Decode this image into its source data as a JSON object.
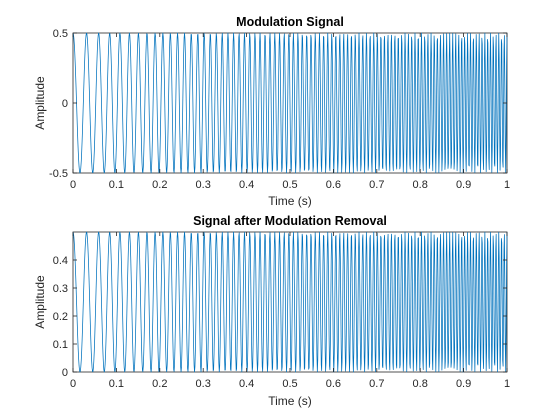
{
  "chart_data": [
    {
      "type": "line",
      "title": "Modulation Signal",
      "xlabel": "Time (s)",
      "ylabel": "Amplitude",
      "xlim": [
        0,
        1
      ],
      "ylim": [
        -0.5,
        0.5
      ],
      "xticks": [
        "0",
        "0.1",
        "0.2",
        "0.3",
        "0.4",
        "0.5",
        "0.6",
        "0.7",
        "0.8",
        "0.9",
        "1"
      ],
      "yticks": [
        "-0.5",
        "0",
        "0.5"
      ],
      "grid": false,
      "series": [
        {
          "signal": "chirp",
          "amplitude": 0.5,
          "offset": 0,
          "start_frequency_hz": 30,
          "end_frequency_hz": 160,
          "sample_rate_hz": 1000,
          "color": "#0072BD"
        }
      ]
    },
    {
      "type": "line",
      "title": "Signal after Modulation Removal",
      "xlabel": "Time (s)",
      "ylabel": "Amplitude",
      "xlim": [
        0,
        1
      ],
      "ylim": [
        0,
        0.5
      ],
      "xticks": [
        "0",
        "0.1",
        "0.2",
        "0.3",
        "0.4",
        "0.5",
        "0.6",
        "0.7",
        "0.8",
        "0.9",
        "1"
      ],
      "yticks": [
        "0",
        "0.1",
        "0.2",
        "0.3",
        "0.4"
      ],
      "grid": false,
      "series": [
        {
          "signal": "chirp",
          "amplitude": 0.25,
          "offset": 0.25,
          "start_frequency_hz": 30,
          "end_frequency_hz": 160,
          "sample_rate_hz": 1000,
          "color": "#0072BD"
        }
      ]
    }
  ]
}
